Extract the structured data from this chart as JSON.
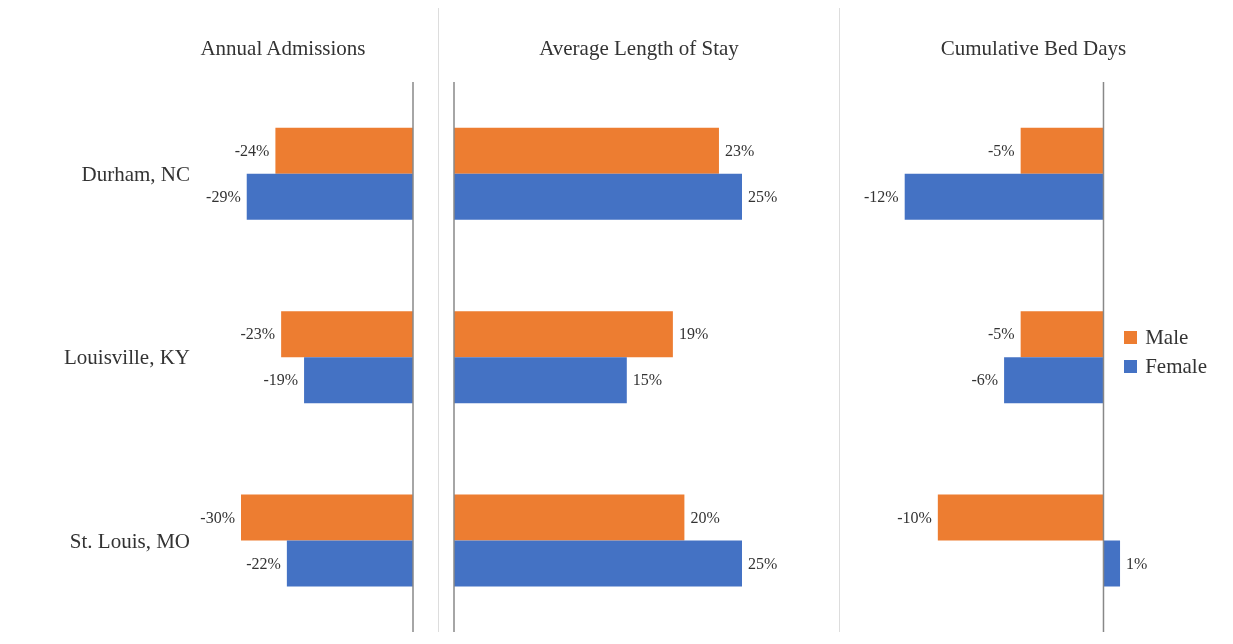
{
  "chart_data": [
    {
      "type": "bar",
      "orientation": "horizontal",
      "title": "Annual Admissions",
      "categories": [
        "Durham, NC",
        "Louisville, KY",
        "St. Louis, MO"
      ],
      "tick_labels": "y",
      "legend": false,
      "series": [
        {
          "color": "#ed7d31",
          "values": [
            -24,
            -23,
            -30
          ],
          "value_labels": [
            "-24%",
            "-23%",
            "-30%"
          ]
        },
        {
          "color": "#4472c4",
          "values": [
            -29,
            -19,
            -22
          ],
          "value_labels": [
            "-29%",
            "-19%",
            "-22%"
          ]
        }
      ]
    },
    {
      "type": "bar",
      "orientation": "horizontal",
      "title": "Average Length of Stay",
      "categories": [
        null,
        null,
        null
      ],
      "tick_labels": false,
      "legend": false,
      "series": [
        {
          "color": "#ed7d31",
          "values": [
            23,
            19,
            20
          ],
          "value_labels": [
            "23%",
            "19%",
            "20%"
          ]
        },
        {
          "color": "#4472c4",
          "values": [
            25,
            15,
            25
          ],
          "value_labels": [
            "25%",
            "15%",
            "25%"
          ]
        }
      ]
    },
    {
      "type": "bar",
      "orientation": "horizontal",
      "title": "Cumulative Bed Days",
      "categories": [
        null,
        null,
        null
      ],
      "tick_labels": false,
      "legend": "right",
      "series": [
        {
          "name": "Male",
          "color": "#ed7d31",
          "values": [
            -5,
            -5,
            -10
          ],
          "value_labels": [
            "-5%",
            "-5%",
            "-10%"
          ]
        },
        {
          "name": "Female",
          "color": "#4472c4",
          "values": [
            -12,
            -6,
            1
          ],
          "value_labels": [
            "-12%",
            "-6%",
            "1%"
          ]
        }
      ]
    }
  ]
}
